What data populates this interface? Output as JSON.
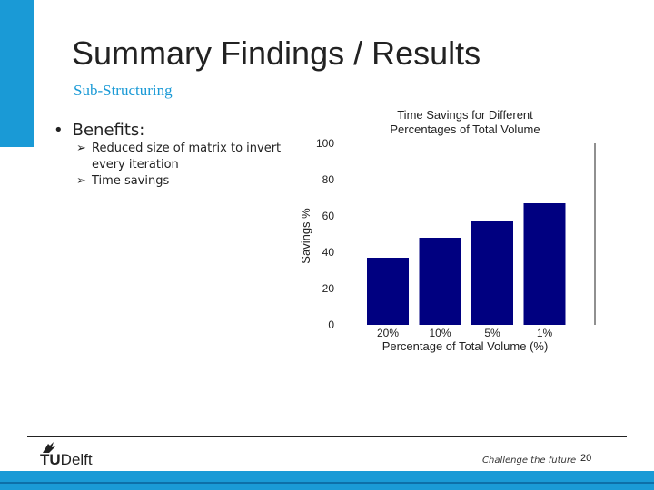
{
  "slide": {
    "title": "Summary Findings / Results",
    "subtitle": "Sub-Structuring",
    "bullet": "Benefits:",
    "subbullets": [
      "Reduced size of matrix to invert every iteration",
      "Time savings"
    ],
    "footer": {
      "logo_bold": "TU",
      "logo_rest": "Delft",
      "tagline": "Challenge the future",
      "page_number": "20"
    },
    "colors": {
      "accent": "#1a9ad6",
      "bar": "#000080"
    }
  },
  "chart_data": {
    "type": "bar",
    "title": "Time Savings for Different Percentages of Total Volume",
    "title_lines": [
      "Time Savings for Different",
      "Percentages of Total Volume"
    ],
    "xlabel": "Percentage of Total Volume (%)",
    "ylabel": "Savings %",
    "categories": [
      "20%",
      "10%",
      "5%",
      "1%"
    ],
    "values": [
      37,
      48,
      57,
      67
    ],
    "ylim": [
      0,
      100
    ],
    "yticks": [
      "0",
      "20",
      "40",
      "60",
      "80",
      "100"
    ],
    "grid": false
  }
}
